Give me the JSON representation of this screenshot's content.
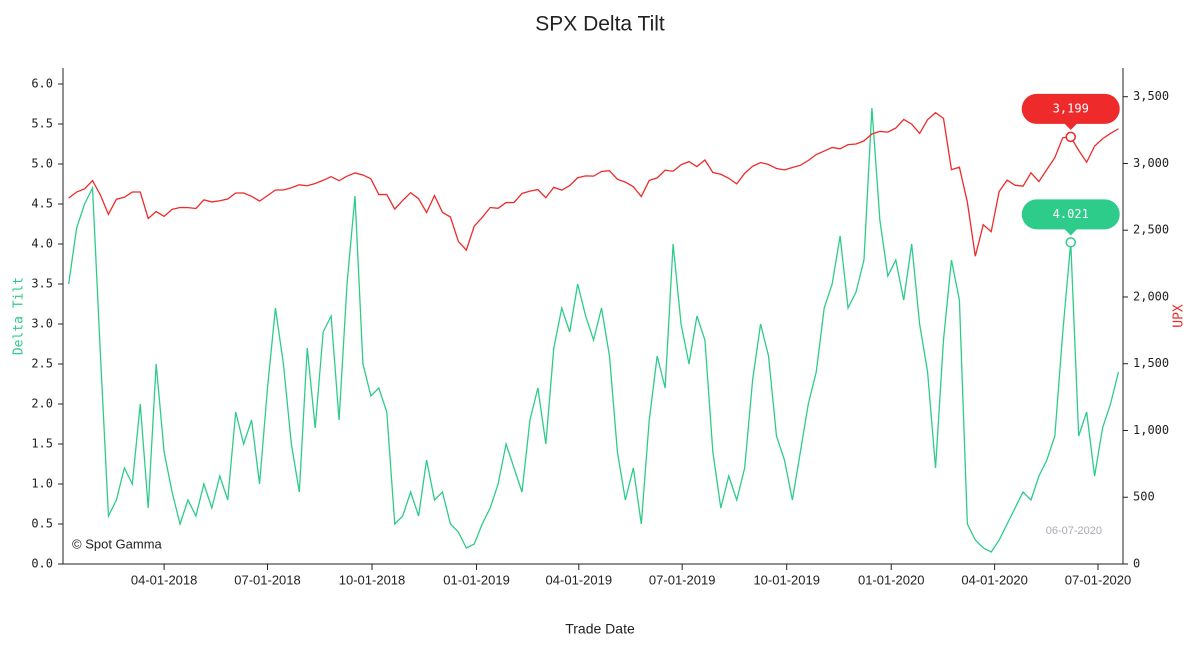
{
  "chart_data": {
    "type": "line",
    "title": "SPX Delta Tilt",
    "x_label": "Trade Date",
    "watermark": "© Spot Gamma",
    "date_label": "06-07-2020",
    "x": [
      "01-07-2018",
      "01-14-2018",
      "01-21-2018",
      "01-28-2018",
      "02-04-2018",
      "02-11-2018",
      "02-18-2018",
      "02-25-2018",
      "03-04-2018",
      "03-11-2018",
      "03-18-2018",
      "03-25-2018",
      "04-01-2018",
      "04-08-2018",
      "04-15-2018",
      "04-22-2018",
      "04-29-2018",
      "05-06-2018",
      "05-13-2018",
      "05-20-2018",
      "05-27-2018",
      "06-03-2018",
      "06-10-2018",
      "06-17-2018",
      "06-24-2018",
      "07-01-2018",
      "07-08-2018",
      "07-15-2018",
      "07-22-2018",
      "07-29-2018",
      "08-05-2018",
      "08-12-2018",
      "08-19-2018",
      "08-26-2018",
      "09-02-2018",
      "09-09-2018",
      "09-16-2018",
      "09-23-2018",
      "09-30-2018",
      "10-07-2018",
      "10-14-2018",
      "10-21-2018",
      "10-28-2018",
      "11-04-2018",
      "11-11-2018",
      "11-18-2018",
      "11-25-2018",
      "12-02-2018",
      "12-09-2018",
      "12-16-2018",
      "12-23-2018",
      "12-30-2018",
      "01-06-2019",
      "01-13-2019",
      "01-20-2019",
      "01-27-2019",
      "02-03-2019",
      "02-10-2019",
      "02-17-2019",
      "02-24-2019",
      "03-03-2019",
      "03-10-2019",
      "03-17-2019",
      "03-24-2019",
      "03-31-2019",
      "04-07-2019",
      "04-14-2019",
      "04-21-2019",
      "04-28-2019",
      "05-05-2019",
      "05-12-2019",
      "05-19-2019",
      "05-26-2019",
      "06-02-2019",
      "06-09-2019",
      "06-16-2019",
      "06-23-2019",
      "06-30-2019",
      "07-07-2019",
      "07-14-2019",
      "07-21-2019",
      "07-28-2019",
      "08-04-2019",
      "08-11-2019",
      "08-18-2019",
      "08-25-2019",
      "09-01-2019",
      "09-08-2019",
      "09-15-2019",
      "09-22-2019",
      "09-29-2019",
      "10-06-2019",
      "10-13-2019",
      "10-20-2019",
      "10-27-2019",
      "11-03-2019",
      "11-10-2019",
      "11-17-2019",
      "11-24-2019",
      "12-01-2019",
      "12-08-2019",
      "12-15-2019",
      "12-22-2019",
      "12-29-2019",
      "01-05-2020",
      "01-12-2020",
      "01-19-2020",
      "01-26-2020",
      "02-02-2020",
      "02-09-2020",
      "02-16-2020",
      "02-23-2020",
      "03-01-2020",
      "03-08-2020",
      "03-15-2020",
      "03-22-2020",
      "03-29-2020",
      "04-05-2020",
      "04-12-2020",
      "04-19-2020",
      "04-26-2020",
      "05-03-2020",
      "05-10-2020",
      "05-17-2020",
      "05-24-2020",
      "05-31-2020",
      "06-07-2020",
      "06-14-2020",
      "06-21-2020",
      "06-28-2020",
      "07-05-2020",
      "07-12-2020",
      "07-19-2020"
    ],
    "series": [
      {
        "name": "Delta Tilt",
        "color": "#2ecc8a",
        "values": [
          3.5,
          4.2,
          4.5,
          4.7,
          2.6,
          0.6,
          0.8,
          1.2,
          1.0,
          2.0,
          0.7,
          2.5,
          1.4,
          0.9,
          0.5,
          0.8,
          0.6,
          1.0,
          0.7,
          1.1,
          0.8,
          1.9,
          1.5,
          1.8,
          1.0,
          2.2,
          3.2,
          2.5,
          1.5,
          0.9,
          2.7,
          1.7,
          2.9,
          3.1,
          1.8,
          3.5,
          4.6,
          2.5,
          2.1,
          2.2,
          1.9,
          0.5,
          0.6,
          0.9,
          0.6,
          1.3,
          0.8,
          0.9,
          0.5,
          0.4,
          0.2,
          0.25,
          0.5,
          0.7,
          1.0,
          1.5,
          1.2,
          0.9,
          1.8,
          2.2,
          1.5,
          2.7,
          3.2,
          2.9,
          3.5,
          3.1,
          2.8,
          3.2,
          2.6,
          1.4,
          0.8,
          1.2,
          0.5,
          1.8,
          2.6,
          2.2,
          4.0,
          3.0,
          2.5,
          3.1,
          2.8,
          1.4,
          0.7,
          1.1,
          0.8,
          1.2,
          2.3,
          3.0,
          2.6,
          1.6,
          1.3,
          0.8,
          1.4,
          2.0,
          2.4,
          3.2,
          3.5,
          4.1,
          3.2,
          3.4,
          3.8,
          5.7,
          4.3,
          3.6,
          3.8,
          3.3,
          4.0,
          3.0,
          2.4,
          1.2,
          2.8,
          3.8,
          3.3,
          0.5,
          0.3,
          0.2,
          0.15,
          0.3,
          0.5,
          0.7,
          0.9,
          0.8,
          1.1,
          1.3,
          1.6,
          2.9,
          4.021,
          1.6,
          1.9,
          1.1,
          1.7,
          2.0,
          2.4
        ]
      },
      {
        "name": "UPX",
        "color": "#ee2a2a",
        "axis": "y2",
        "values": [
          2740,
          2786,
          2810,
          2872,
          2762,
          2619,
          2732,
          2747,
          2786,
          2786,
          2588,
          2640,
          2604,
          2656,
          2670,
          2669,
          2663,
          2727,
          2712,
          2721,
          2734,
          2779,
          2779,
          2754,
          2718,
          2759,
          2801,
          2801,
          2818,
          2840,
          2833,
          2850,
          2874,
          2901,
          2871,
          2905,
          2929,
          2914,
          2885,
          2767,
          2767,
          2658,
          2723,
          2781,
          2736,
          2632,
          2760,
          2633,
          2599,
          2416,
          2351,
          2531,
          2596,
          2670,
          2664,
          2707,
          2708,
          2775,
          2793,
          2804,
          2743,
          2822,
          2800,
          2834,
          2893,
          2907,
          2905,
          2940,
          2946,
          2881,
          2860,
          2826,
          2752,
          2873,
          2892,
          2950,
          2942,
          2990,
          3014,
          2977,
          3026,
          2932,
          2919,
          2889,
          2847,
          2926,
          2979,
          3007,
          2992,
          2962,
          2952,
          2970,
          2986,
          3022,
          3067,
          3093,
          3120,
          3110,
          3141,
          3146,
          3169,
          3221,
          3240,
          3235,
          3265,
          3330,
          3295,
          3225,
          3328,
          3380,
          3338,
          2954,
          2972,
          2711,
          2305,
          2541,
          2489,
          2790,
          2875,
          2837,
          2830,
          2930,
          2864,
          2955,
          3044,
          3193,
          3199,
          3098,
          3009,
          3130,
          3185,
          3225,
          3260
        ]
      }
    ],
    "annotations": [
      {
        "x": "06-07-2020",
        "series": 1,
        "label": "3,199"
      },
      {
        "x": "06-07-2020",
        "series": 0,
        "label": "4.021"
      }
    ],
    "xlim": [
      "01-02-2018",
      "07-23-2020"
    ],
    "xticks": [
      "04-01-2018",
      "07-01-2018",
      "10-01-2018",
      "01-01-2019",
      "04-01-2019",
      "07-01-2019",
      "10-01-2019",
      "01-01-2020",
      "04-01-2020",
      "07-01-2020"
    ],
    "ylim": [
      0,
      6.2
    ],
    "yticks": [
      {
        "value": 0,
        "label": "0.0"
      },
      {
        "value": 0.5,
        "label": "0.5"
      },
      {
        "value": 1,
        "label": "1.0"
      },
      {
        "value": 1.5,
        "label": "1.5"
      },
      {
        "value": 2,
        "label": "2.0"
      },
      {
        "value": 2.5,
        "label": "2.5"
      },
      {
        "value": 3,
        "label": "3.0"
      },
      {
        "value": 3.5,
        "label": "3.5"
      },
      {
        "value": 4,
        "label": "4.0"
      },
      {
        "value": 4.5,
        "label": "4.5"
      },
      {
        "value": 5,
        "label": "5.0"
      },
      {
        "value": 5.5,
        "label": "5.5"
      },
      {
        "value": 6,
        "label": "6.0"
      }
    ],
    "y2lim": [
      0,
      3715
    ],
    "y2ticks": [
      0,
      500,
      {
        "value": 1000,
        "label": "1,000"
      },
      {
        "value": 1500,
        "label": "1,500"
      },
      {
        "value": 2000,
        "label": "2,000"
      },
      {
        "value": 2500,
        "label": "2,500"
      },
      {
        "value": 3000,
        "label": "3,000"
      },
      {
        "value": 3500,
        "label": "3,500"
      }
    ],
    "grid": false
  }
}
